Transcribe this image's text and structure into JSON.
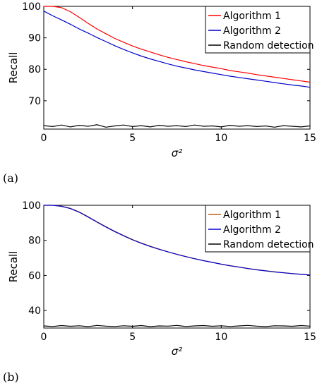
{
  "chart_data": [
    {
      "type": "line",
      "panel_label": "(a)",
      "xlabel": "σ²",
      "ylabel": "Recall",
      "xlim": [
        0,
        15
      ],
      "ylim": [
        61,
        100
      ],
      "xticks": [
        0,
        5,
        10,
        15
      ],
      "yticks": [
        70,
        80,
        90,
        100
      ],
      "grid": false,
      "legend_position": "top-right",
      "series": [
        {
          "name": "Algorithm 1",
          "color": "#ff0000",
          "x": [
            0,
            0.5,
            1,
            1.5,
            2,
            2.5,
            3,
            3.5,
            4,
            4.5,
            5,
            5.5,
            6,
            6.5,
            7,
            7.5,
            8,
            8.5,
            9,
            9.5,
            10,
            10.5,
            11,
            11.5,
            12,
            12.5,
            13,
            13.5,
            14,
            14.5,
            15
          ],
          "y": [
            100,
            100,
            99.6,
            98.3,
            96.5,
            94.6,
            92.8,
            91.3,
            89.8,
            88.6,
            87.4,
            86.4,
            85.5,
            84.6,
            83.8,
            83.1,
            82.4,
            81.8,
            81.2,
            80.7,
            80.2,
            79.6,
            79.2,
            78.8,
            78.3,
            77.9,
            77.5,
            77.1,
            76.7,
            76.3,
            75.9
          ]
        },
        {
          "name": "Algorithm 2",
          "color": "#0000cc",
          "x": [
            0,
            0.5,
            1,
            1.5,
            2,
            2.5,
            3,
            3.5,
            4,
            4.5,
            5,
            5.5,
            6,
            6.5,
            7,
            7.5,
            8,
            8.5,
            9,
            9.5,
            10,
            10.5,
            11,
            11.5,
            12,
            12.5,
            13,
            13.5,
            14,
            14.5,
            15
          ],
          "y": [
            98.5,
            97,
            95.7,
            94.3,
            92.8,
            91.5,
            90.1,
            88.8,
            87.5,
            86.3,
            85.2,
            84.2,
            83.3,
            82.5,
            81.7,
            81,
            80.4,
            79.8,
            79.3,
            78.8,
            78.3,
            77.8,
            77.4,
            77,
            76.6,
            76.2,
            75.8,
            75.4,
            75,
            74.7,
            74.3
          ]
        },
        {
          "name": "Random detection",
          "color": "#000000",
          "x": [
            0,
            0.5,
            1,
            1.5,
            2,
            2.5,
            3,
            3.5,
            4,
            4.5,
            5,
            5.5,
            6,
            6.5,
            7,
            7.5,
            8,
            8.5,
            9,
            9.5,
            10,
            10.5,
            11,
            11.5,
            12,
            12.5,
            13,
            13.5,
            14,
            14.5,
            15
          ],
          "y": [
            62.1,
            61.8,
            62.3,
            61.7,
            62.2,
            61.9,
            62.4,
            61.6,
            62,
            62.3,
            61.8,
            62.1,
            61.7,
            62.2,
            61.9,
            62.1,
            61.8,
            62.3,
            61.9,
            62,
            61.7,
            62.2,
            61.9,
            62.1,
            61.8,
            62,
            61.6,
            62.1,
            61.9,
            61.7,
            62
          ]
        }
      ]
    },
    {
      "type": "line",
      "panel_label": "(b)",
      "xlabel": "σ²",
      "ylabel": "Recall",
      "xlim": [
        0,
        15
      ],
      "ylim": [
        30,
        100
      ],
      "xticks": [
        0,
        5,
        10,
        15
      ],
      "yticks": [
        40,
        60,
        80,
        100
      ],
      "grid": false,
      "legend_position": "top-right",
      "series": [
        {
          "name": "Algorithm 1",
          "color": "#b5651d",
          "x": [
            0,
            0.5,
            1,
            1.5,
            2,
            2.5,
            3,
            3.5,
            4,
            4.5,
            5,
            5.5,
            6,
            6.5,
            7,
            7.5,
            8,
            8.5,
            9,
            9.5,
            10,
            10.5,
            11,
            11.5,
            12,
            12.5,
            13,
            13.5,
            14,
            14.5,
            15
          ],
          "y": [
            100,
            100,
            99.5,
            98.3,
            96.2,
            93.5,
            90.6,
            87.8,
            85.2,
            82.8,
            80.5,
            78.5,
            76.7,
            75,
            73.5,
            72.1,
            70.8,
            69.6,
            68.5,
            67.5,
            66.5,
            65.6,
            64.8,
            64,
            63.3,
            62.7,
            62.1,
            61.6,
            61.1,
            60.7,
            60.3
          ]
        },
        {
          "name": "Algorithm 2",
          "color": "#0000cc",
          "x": [
            0,
            0.5,
            1,
            1.5,
            2,
            2.5,
            3,
            3.5,
            4,
            4.5,
            5,
            5.5,
            6,
            6.5,
            7,
            7.5,
            8,
            8.5,
            9,
            9.5,
            10,
            10.5,
            11,
            11.5,
            12,
            12.5,
            13,
            13.5,
            14,
            14.5,
            15
          ],
          "y": [
            100,
            100,
            99.4,
            98.1,
            96,
            93.3,
            90.4,
            87.6,
            85,
            82.6,
            80.3,
            78.3,
            76.5,
            74.9,
            73.4,
            72,
            70.7,
            69.5,
            68.4,
            67.4,
            66.4,
            65.5,
            64.7,
            63.9,
            63.2,
            62.6,
            62,
            61.5,
            61,
            60.6,
            60.2
          ]
        },
        {
          "name": "Random detection",
          "color": "#000000",
          "x": [
            0,
            0.5,
            1,
            1.5,
            2,
            2.5,
            3,
            3.5,
            4,
            4.5,
            5,
            5.5,
            6,
            6.5,
            7,
            7.5,
            8,
            8.5,
            9,
            9.5,
            10,
            10.5,
            11,
            11.5,
            12,
            12.5,
            13,
            13.5,
            14,
            14.5,
            15
          ],
          "y": [
            31.2,
            30.9,
            31.4,
            31,
            31.3,
            30.8,
            31.5,
            31.1,
            30.9,
            31.3,
            31,
            31.4,
            30.8,
            31.2,
            31.1,
            31.5,
            30.9,
            31.2,
            31.4,
            31,
            31.3,
            30.9,
            31.2,
            31.5,
            31.1,
            30.8,
            31.3,
            31.2,
            31,
            31.4,
            31.1
          ]
        }
      ]
    }
  ]
}
